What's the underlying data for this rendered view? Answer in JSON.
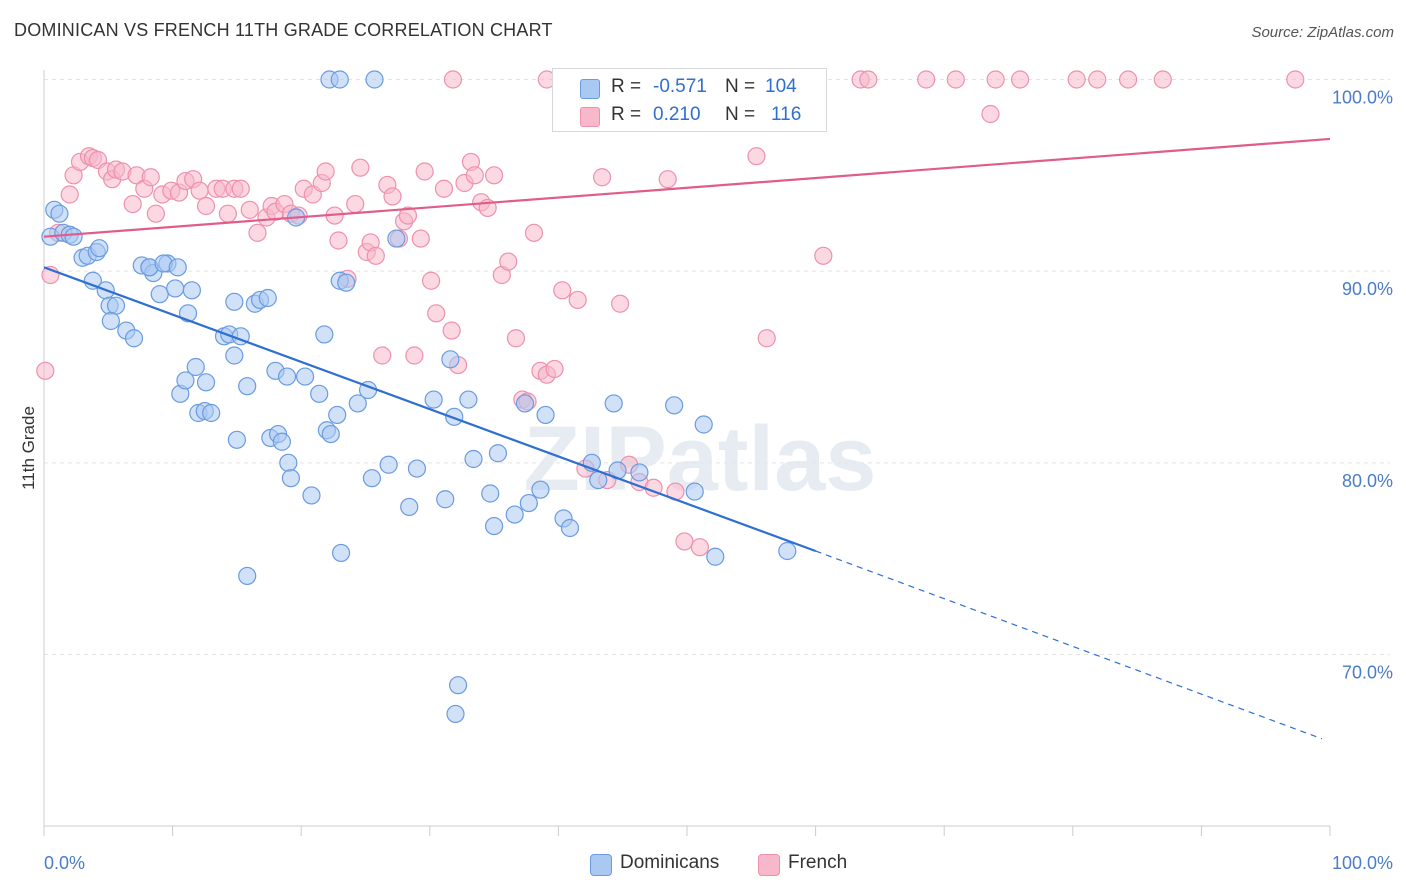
{
  "title": "DOMINICAN VS FRENCH 11TH GRADE CORRELATION CHART",
  "source": "Source: ZipAtlas.com",
  "watermark": "ZIPatlas",
  "colors": {
    "dominicans_fill": "#a9c8f2",
    "dominicans_stroke": "#6a9be0",
    "dominicans_line": "#2f6fd0",
    "french_fill": "#f7b8cb",
    "french_stroke": "#ee90ae",
    "french_line": "#e05c8a",
    "tick_text": "#4a7cc9",
    "grid": "#e3e3e3"
  },
  "legend": {
    "rows": [
      {
        "r_label": "R =",
        "r_value": "-0.571",
        "n_label": "N =",
        "n_value": "104"
      },
      {
        "r_label": "R =",
        "r_value": "0.210",
        "n_label": "N =",
        "n_value": "116"
      }
    ]
  },
  "bottom_legend": {
    "dominicans": "Dominicans",
    "french": "French"
  },
  "chart_data": {
    "type": "scatter",
    "title": "DOMINICAN VS FRENCH 11TH GRADE CORRELATION CHART",
    "ylabel": "11th Grade",
    "xlabel": "",
    "xlim": [
      0,
      100
    ],
    "ylim": [
      60,
      101.5
    ],
    "x_tick_labels": [
      "0.0%",
      "100.0%"
    ],
    "y_tick_labels": [
      "100.0%",
      "90.0%",
      "80.0%",
      "70.0%"
    ],
    "y_ticks": [
      100,
      90,
      80,
      70
    ],
    "grid": true,
    "series": [
      {
        "name": "Dominicans",
        "R": -0.571,
        "N": 104,
        "trend": {
          "x0": 0,
          "y0": 90.2,
          "x1": 60,
          "y1": 75.4,
          "dashed_to_x": 100,
          "dashed_to_y": 65.6
        },
        "points": [
          [
            0.5,
            91.8
          ],
          [
            0.8,
            93.2
          ],
          [
            1.2,
            93.0
          ],
          [
            1.5,
            92.0
          ],
          [
            2.0,
            91.9
          ],
          [
            2.3,
            91.8
          ],
          [
            3.0,
            90.7
          ],
          [
            3.4,
            90.8
          ],
          [
            3.8,
            89.5
          ],
          [
            4.1,
            91.0
          ],
          [
            4.3,
            91.2
          ],
          [
            4.8,
            89.0
          ],
          [
            5.1,
            88.2
          ],
          [
            5.6,
            88.2
          ],
          [
            5.2,
            87.4
          ],
          [
            6.4,
            86.9
          ],
          [
            7.0,
            86.5
          ],
          [
            7.6,
            90.3
          ],
          [
            8.2,
            90.2
          ],
          [
            8.5,
            89.9
          ],
          [
            8.2,
            90.2
          ],
          [
            9.0,
            88.8
          ],
          [
            9.6,
            90.4
          ],
          [
            9.3,
            90.4
          ],
          [
            10.2,
            89.1
          ],
          [
            10.4,
            90.2
          ],
          [
            11.2,
            87.8
          ],
          [
            11.5,
            89.0
          ],
          [
            10.6,
            83.6
          ],
          [
            11.0,
            84.3
          ],
          [
            11.8,
            85.0
          ],
          [
            12.6,
            84.2
          ],
          [
            12.0,
            82.6
          ],
          [
            12.5,
            82.7
          ],
          [
            13.0,
            82.6
          ],
          [
            14.0,
            86.6
          ],
          [
            14.4,
            86.7
          ],
          [
            14.8,
            88.4
          ],
          [
            14.8,
            85.6
          ],
          [
            15.3,
            86.6
          ],
          [
            15.0,
            81.2
          ],
          [
            15.8,
            84.0
          ],
          [
            16.4,
            88.3
          ],
          [
            16.8,
            88.5
          ],
          [
            17.4,
            88.6
          ],
          [
            17.6,
            81.3
          ],
          [
            18.0,
            84.8
          ],
          [
            18.2,
            81.5
          ],
          [
            18.5,
            81.1
          ],
          [
            19.0,
            80.0
          ],
          [
            18.9,
            84.5
          ],
          [
            19.2,
            79.2
          ],
          [
            19.6,
            92.8
          ],
          [
            20.3,
            84.5
          ],
          [
            20.8,
            78.3
          ],
          [
            21.4,
            83.6
          ],
          [
            21.8,
            86.7
          ],
          [
            22.0,
            81.7
          ],
          [
            22.3,
            81.5
          ],
          [
            22.8,
            82.5
          ],
          [
            23.0,
            89.5
          ],
          [
            23.5,
            89.4
          ],
          [
            22.2,
            100.0
          ],
          [
            23.0,
            100.0
          ],
          [
            25.7,
            100.0
          ],
          [
            23.1,
            75.3
          ],
          [
            24.4,
            83.1
          ],
          [
            25.2,
            83.8
          ],
          [
            25.5,
            79.2
          ],
          [
            26.8,
            79.9
          ],
          [
            28.4,
            77.7
          ],
          [
            27.4,
            91.7
          ],
          [
            29.0,
            79.7
          ],
          [
            30.3,
            83.3
          ],
          [
            31.2,
            78.1
          ],
          [
            31.6,
            85.4
          ],
          [
            31.9,
            82.4
          ],
          [
            33.0,
            83.3
          ],
          [
            33.4,
            80.2
          ],
          [
            35.0,
            76.7
          ],
          [
            34.7,
            78.4
          ],
          [
            35.3,
            80.5
          ],
          [
            36.6,
            77.3
          ],
          [
            37.7,
            77.9
          ],
          [
            38.6,
            78.6
          ],
          [
            37.4,
            83.1
          ],
          [
            39.0,
            82.5
          ],
          [
            40.4,
            77.1
          ],
          [
            40.9,
            76.6
          ],
          [
            42.6,
            80.0
          ],
          [
            43.1,
            79.1
          ],
          [
            44.6,
            79.6
          ],
          [
            44.3,
            83.1
          ],
          [
            46.3,
            79.5
          ],
          [
            49.0,
            83.0
          ],
          [
            51.3,
            82.0
          ],
          [
            50.6,
            78.5
          ],
          [
            52.2,
            75.1
          ],
          [
            57.8,
            75.4
          ],
          [
            15.8,
            74.1
          ],
          [
            32.2,
            68.4
          ],
          [
            32.0,
            66.9
          ]
        ]
      },
      {
        "name": "French",
        "R": 0.21,
        "N": 116,
        "trend": {
          "x0": 0,
          "y0": 91.8,
          "x1": 100,
          "y1": 96.9
        },
        "points": [
          [
            0.1,
            84.8
          ],
          [
            0.5,
            89.8
          ],
          [
            1.1,
            92.0
          ],
          [
            2.0,
            94.0
          ],
          [
            2.3,
            95.0
          ],
          [
            2.8,
            95.7
          ],
          [
            3.5,
            96.0
          ],
          [
            3.8,
            95.9
          ],
          [
            4.2,
            95.8
          ],
          [
            4.9,
            95.2
          ],
          [
            5.3,
            94.8
          ],
          [
            5.6,
            95.3
          ],
          [
            6.1,
            95.2
          ],
          [
            6.9,
            93.5
          ],
          [
            7.2,
            95.0
          ],
          [
            7.8,
            94.3
          ],
          [
            8.3,
            94.9
          ],
          [
            8.7,
            93.0
          ],
          [
            9.2,
            94.0
          ],
          [
            9.9,
            94.2
          ],
          [
            10.5,
            94.1
          ],
          [
            11.0,
            94.7
          ],
          [
            11.6,
            94.8
          ],
          [
            12.1,
            94.2
          ],
          [
            12.6,
            93.4
          ],
          [
            13.4,
            94.3
          ],
          [
            13.9,
            94.3
          ],
          [
            14.3,
            93.0
          ],
          [
            14.8,
            94.3
          ],
          [
            15.3,
            94.3
          ],
          [
            16.0,
            93.2
          ],
          [
            16.6,
            92.0
          ],
          [
            17.3,
            92.8
          ],
          [
            17.7,
            93.4
          ],
          [
            18.0,
            93.1
          ],
          [
            18.7,
            93.5
          ],
          [
            19.2,
            93.0
          ],
          [
            19.8,
            92.9
          ],
          [
            20.2,
            94.3
          ],
          [
            20.9,
            94.0
          ],
          [
            21.6,
            94.6
          ],
          [
            21.9,
            95.2
          ],
          [
            22.6,
            92.9
          ],
          [
            22.9,
            91.6
          ],
          [
            23.6,
            89.6
          ],
          [
            24.2,
            93.5
          ],
          [
            24.6,
            95.4
          ],
          [
            25.1,
            91.0
          ],
          [
            25.4,
            91.5
          ],
          [
            25.8,
            90.8
          ],
          [
            26.3,
            85.6
          ],
          [
            26.7,
            94.5
          ],
          [
            27.1,
            93.9
          ],
          [
            27.6,
            91.7
          ],
          [
            28.0,
            92.6
          ],
          [
            28.3,
            92.9
          ],
          [
            28.8,
            85.6
          ],
          [
            29.3,
            91.7
          ],
          [
            29.6,
            95.2
          ],
          [
            30.1,
            89.5
          ],
          [
            30.5,
            87.8
          ],
          [
            31.1,
            94.3
          ],
          [
            31.7,
            86.9
          ],
          [
            32.2,
            85.1
          ],
          [
            32.7,
            94.6
          ],
          [
            33.2,
            95.7
          ],
          [
            33.5,
            95.0
          ],
          [
            34.0,
            93.6
          ],
          [
            34.5,
            93.3
          ],
          [
            35.0,
            95.0
          ],
          [
            35.6,
            89.8
          ],
          [
            36.1,
            90.5
          ],
          [
            36.7,
            86.5
          ],
          [
            37.2,
            83.3
          ],
          [
            37.6,
            83.2
          ],
          [
            38.1,
            92.0
          ],
          [
            38.6,
            84.8
          ],
          [
            39.1,
            84.6
          ],
          [
            39.7,
            84.9
          ],
          [
            40.3,
            89.0
          ],
          [
            41.5,
            88.5
          ],
          [
            42.1,
            79.7
          ],
          [
            43.4,
            94.9
          ],
          [
            43.8,
            79.1
          ],
          [
            44.8,
            88.3
          ],
          [
            45.5,
            79.9
          ],
          [
            46.3,
            79.0
          ],
          [
            47.4,
            78.7
          ],
          [
            48.5,
            94.8
          ],
          [
            49.1,
            78.5
          ],
          [
            49.8,
            75.9
          ],
          [
            51.0,
            75.6
          ],
          [
            55.4,
            96.0
          ],
          [
            56.2,
            86.5
          ],
          [
            60.6,
            90.8
          ],
          [
            31.8,
            100.0
          ],
          [
            39.1,
            100.0
          ],
          [
            42.6,
            100.0
          ],
          [
            46.3,
            100.0
          ],
          [
            52.4,
            100.0
          ],
          [
            59.6,
            100.0
          ],
          [
            63.5,
            100.0
          ],
          [
            64.1,
            100.0
          ],
          [
            68.6,
            100.0
          ],
          [
            70.9,
            100.0
          ],
          [
            74.0,
            100.0
          ],
          [
            75.9,
            100.0
          ],
          [
            80.3,
            100.0
          ],
          [
            81.9,
            100.0
          ],
          [
            84.3,
            100.0
          ],
          [
            87.0,
            100.0
          ],
          [
            97.3,
            100.0
          ],
          [
            73.6,
            98.2
          ],
          [
            40.2,
            100.0
          ],
          [
            43.5,
            100.0
          ],
          [
            44.1,
            100.0
          ]
        ]
      }
    ]
  }
}
